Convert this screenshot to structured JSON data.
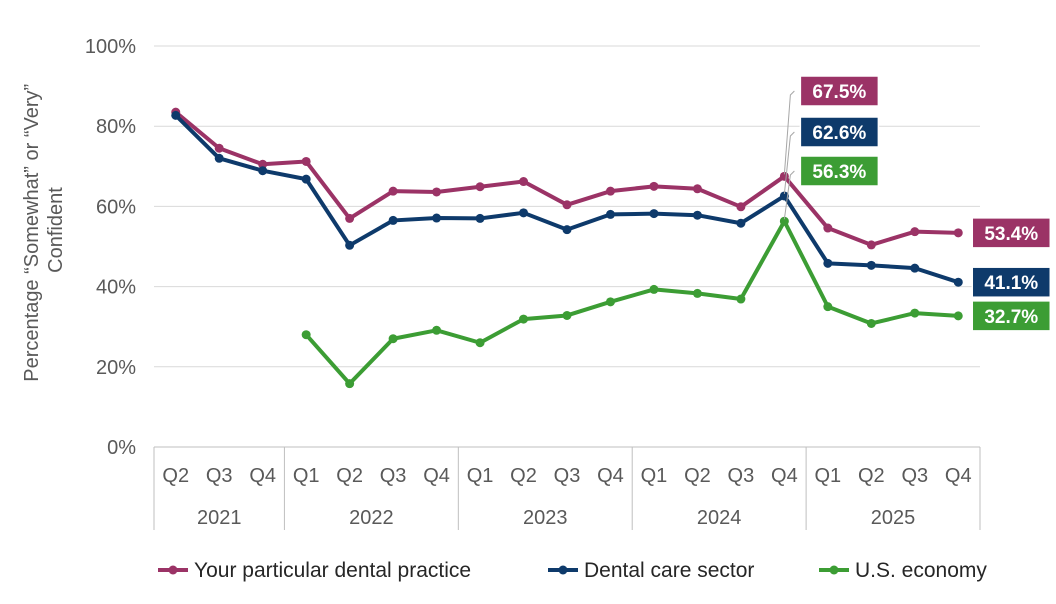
{
  "chart_data": {
    "type": "line",
    "ylabel_lines": [
      "Percentage “Somewhat” or “Very”",
      "Confident"
    ],
    "ylim": [
      0,
      100
    ],
    "yticks": [
      "0%",
      "20%",
      "40%",
      "60%",
      "80%",
      "100%"
    ],
    "grid": true,
    "legend_position": "bottom",
    "categories": [
      "Q2",
      "Q3",
      "Q4",
      "Q1",
      "Q2",
      "Q3",
      "Q4",
      "Q1",
      "Q2",
      "Q3",
      "Q4",
      "Q1",
      "Q2",
      "Q3",
      "Q4",
      "Q1",
      "Q2",
      "Q3",
      "Q4"
    ],
    "year_groups": [
      {
        "label": "2021",
        "count": 3
      },
      {
        "label": "2022",
        "count": 4
      },
      {
        "label": "2023",
        "count": 4
      },
      {
        "label": "2024",
        "count": 4
      },
      {
        "label": "2025",
        "count": 4
      }
    ],
    "series": [
      {
        "name": "Your particular dental practice",
        "color": "#9B3366",
        "values": [
          83.5,
          74.5,
          70.5,
          71.2,
          57.0,
          63.8,
          63.6,
          64.9,
          66.2,
          60.4,
          63.8,
          65.0,
          64.4,
          59.9,
          67.5,
          54.6,
          50.4,
          53.7,
          53.4
        ]
      },
      {
        "name": "Dental care sector",
        "color": "#0E3A6B",
        "values": [
          82.7,
          72.0,
          68.9,
          66.8,
          50.3,
          56.5,
          57.1,
          57.0,
          58.4,
          54.2,
          58.0,
          58.2,
          57.8,
          55.8,
          62.6,
          45.8,
          45.3,
          44.6,
          41.1
        ]
      },
      {
        "name": "U.S. economy",
        "color": "#3C9D34",
        "values": [
          null,
          null,
          null,
          28.0,
          15.8,
          27.0,
          29.1,
          26.0,
          31.9,
          32.8,
          36.2,
          39.3,
          38.3,
          36.9,
          56.3,
          35.0,
          30.8,
          33.4,
          32.7
        ]
      }
    ],
    "callouts": [
      {
        "series": 0,
        "index": 14,
        "text": "67.5%"
      },
      {
        "series": 1,
        "index": 14,
        "text": "62.6%"
      },
      {
        "series": 2,
        "index": 14,
        "text": "56.3%"
      },
      {
        "series": 0,
        "index": 18,
        "text": "53.4%"
      },
      {
        "series": 1,
        "index": 18,
        "text": "41.1%"
      },
      {
        "series": 2,
        "index": 18,
        "text": "32.7%"
      }
    ]
  }
}
